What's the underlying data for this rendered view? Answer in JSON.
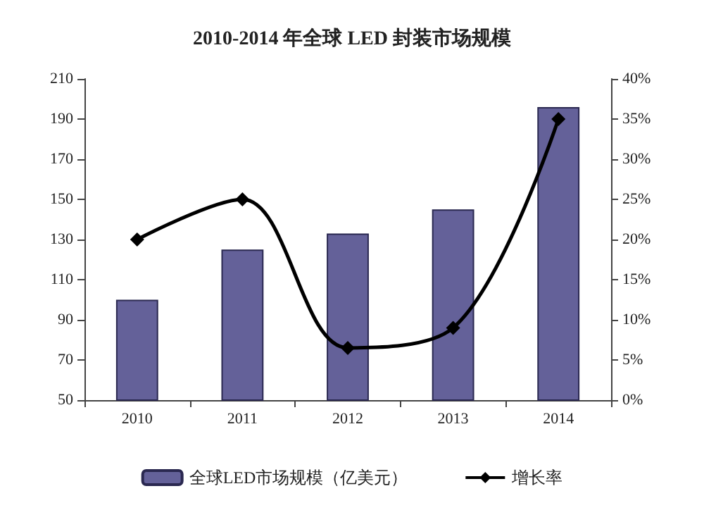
{
  "chart_data": {
    "type": "bar",
    "title": "2010-2014 年全球 LED 封装市场规模",
    "categories": [
      "2010",
      "2011",
      "2012",
      "2013",
      "2014"
    ],
    "series": [
      {
        "name": "全球LED市场规模（亿美元）",
        "color": "#646199",
        "values": [
          100,
          125,
          133,
          145,
          196
        ]
      },
      {
        "name": "增长率",
        "type": "line",
        "axis": "y2",
        "color": "#000000",
        "marker": "diamond",
        "values": [
          20,
          25,
          6.5,
          9,
          35
        ]
      }
    ],
    "ylim": [
      50,
      210
    ],
    "yticks": [
      50,
      70,
      90,
      110,
      130,
      150,
      170,
      190,
      210
    ],
    "y2lim": [
      0,
      40
    ],
    "y2ticks": [
      {
        "value": 0,
        "label": "0%"
      },
      {
        "value": 5,
        "label": "5%"
      },
      {
        "value": 10,
        "label": "10%"
      },
      {
        "value": 15,
        "label": "15%"
      },
      {
        "value": 20,
        "label": "20%"
      },
      {
        "value": 25,
        "label": "25%"
      },
      {
        "value": 30,
        "label": "30%"
      },
      {
        "value": 35,
        "label": "35%"
      },
      {
        "value": 40,
        "label": "40%"
      }
    ],
    "grid": false,
    "legend": "bottom"
  }
}
